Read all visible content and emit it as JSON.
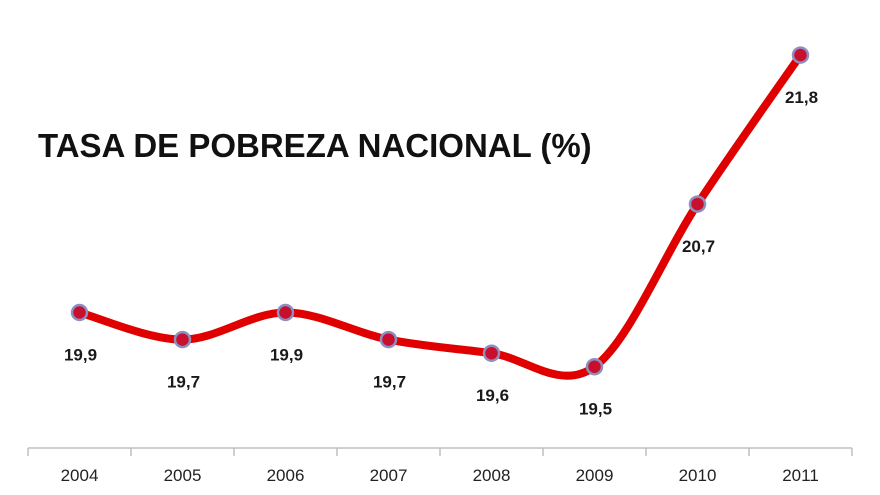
{
  "chart_data": {
    "type": "line",
    "title": "TASA DE POBREZA NACIONAL (%)",
    "categories": [
      "2004",
      "2005",
      "2006",
      "2007",
      "2008",
      "2009",
      "2010",
      "2011"
    ],
    "values": [
      19.9,
      19.7,
      19.9,
      19.7,
      19.6,
      19.5,
      20.7,
      21.8
    ],
    "data_labels": [
      "19,9",
      "19,7",
      "19,9",
      "19,7",
      "19,6",
      "19,5",
      "20,7",
      "21,8"
    ],
    "xlabel": "",
    "ylabel": "",
    "ylim": [
      18.9,
      22.0
    ],
    "grid": false,
    "legend": "none",
    "smooth": true,
    "colors": {
      "line": "#e00000",
      "marker_fill": "#c8102e",
      "marker_stroke": "#8c8fc0",
      "axis": "#bfbfbf"
    }
  }
}
